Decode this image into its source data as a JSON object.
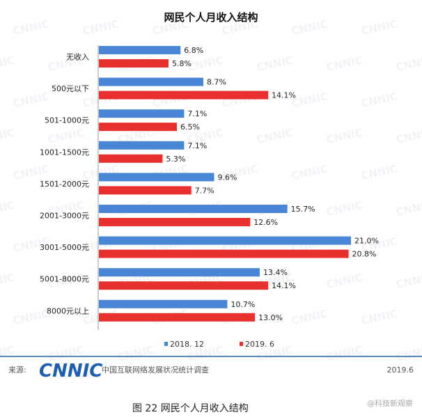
{
  "chart_data": {
    "type": "bar",
    "orientation": "horizontal",
    "title": "网民个人月收入结构",
    "categories": [
      "无收入",
      "500元以下",
      "501-1000元",
      "1001-1500元",
      "1501-2000元",
      "2001-3000元",
      "3001-5000元",
      "5001-8000元",
      "8000元以上"
    ],
    "series": [
      {
        "name": "2018. 12",
        "color": "#4a86d6",
        "values": [
          6.8,
          8.7,
          7.1,
          7.1,
          9.6,
          15.7,
          21.0,
          13.4,
          10.7
        ]
      },
      {
        "name": "2019. 6",
        "color": "#e8312f",
        "values": [
          5.8,
          14.1,
          6.5,
          5.3,
          7.7,
          12.6,
          20.8,
          14.1,
          13.0
        ]
      }
    ],
    "value_labels": [
      [
        "6.8%",
        "8.7%",
        "7.1%",
        "7.1%",
        "9.6%",
        "15.7%",
        "21.0%",
        "13.4%",
        "10.7%"
      ],
      [
        "5.8%",
        "14.1%",
        "6.5%",
        "5.3%",
        "7.7%",
        "12.6%",
        "20.8%",
        "14.1%",
        "13.0%"
      ]
    ],
    "xlim": [
      0,
      21.0
    ],
    "legend_position": "bottom",
    "grid": false
  },
  "footer": {
    "source_label": "来源:",
    "logo_text": "CNNIC",
    "org_name": "中国互联网络发展状况统计调查",
    "date": "2019.6"
  },
  "caption": "图  22  网民个人月收入结构",
  "watermark": {
    "text": "CNNIC",
    "mark_text": "@科技新观察"
  },
  "colors": {
    "blue": "#4a86d6",
    "red": "#e8312f",
    "footer_line": "#1e5fb4"
  }
}
